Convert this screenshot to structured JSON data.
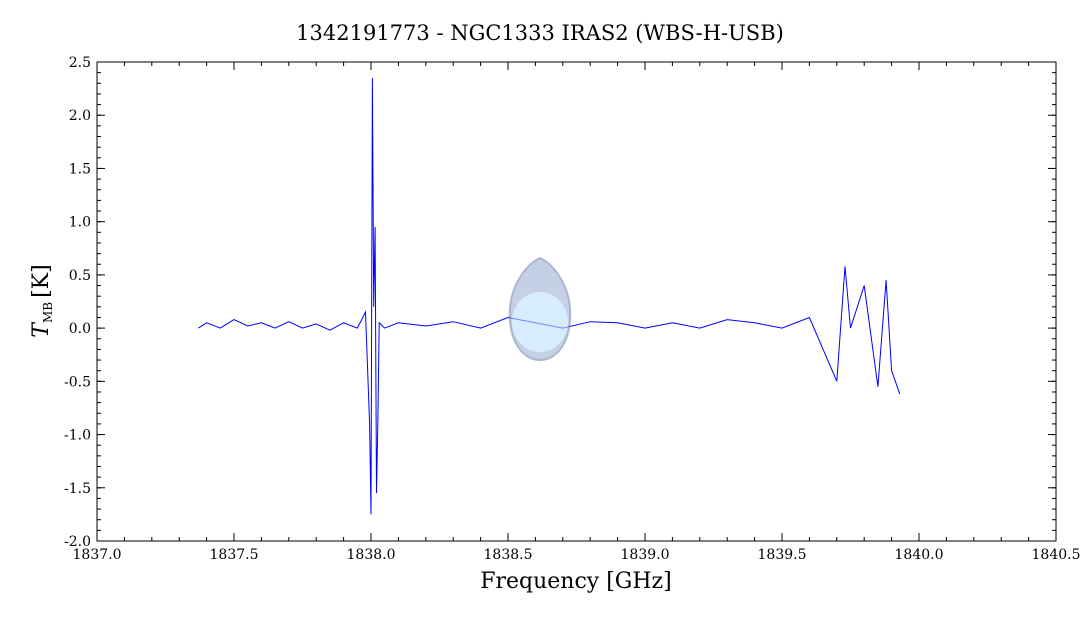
{
  "chart_data": {
    "type": "line",
    "title": "1342191773 - NGC1333 IRAS2 (WBS-H-USB)",
    "xlabel": "Frequency [GHz]",
    "ylabel": {
      "symbol": "T",
      "subscript": "MB",
      "unit": "[K]"
    },
    "xlim": [
      1837.0,
      1840.5
    ],
    "ylim": [
      -2.0,
      2.5
    ],
    "x_ticks": [
      1837.0,
      1837.5,
      1838.0,
      1838.5,
      1839.0,
      1839.5,
      1840.0,
      1840.5
    ],
    "x_tick_labels": [
      "1837.0",
      "1837.5",
      "1838.0",
      "1838.5",
      "1839.0",
      "1839.5",
      "1840.0",
      "1840.5"
    ],
    "y_ticks": [
      -2.0,
      -1.5,
      -1.0,
      -0.5,
      0.0,
      0.5,
      1.0,
      1.5,
      2.0,
      2.5
    ],
    "y_tick_labels": [
      "-2.0",
      "-1.5",
      "-1.0",
      "-0.5",
      "0.0",
      "0.5",
      "1.0",
      "1.5",
      "2.0",
      "2.5"
    ],
    "grid": false,
    "series": [
      {
        "color": "#0000ff",
        "x": [
          1837.37,
          1837.4,
          1837.45,
          1837.5,
          1837.55,
          1837.6,
          1837.65,
          1837.7,
          1837.75,
          1837.8,
          1837.85,
          1837.9,
          1837.95,
          1837.98,
          1837.995,
          1838.0,
          1838.005,
          1838.01,
          1838.015,
          1838.02,
          1838.025,
          1838.03,
          1838.05,
          1838.1,
          1838.2,
          1838.3,
          1838.4,
          1838.5,
          1838.6,
          1838.7,
          1838.8,
          1838.9,
          1839.0,
          1839.1,
          1839.2,
          1839.3,
          1839.4,
          1839.5,
          1839.6,
          1839.7,
          1839.73,
          1839.75,
          1839.8,
          1839.85,
          1839.88,
          1839.9,
          1839.93
        ],
        "y": [
          0.0,
          0.05,
          0.0,
          0.08,
          0.02,
          0.05,
          0.0,
          0.06,
          0.0,
          0.04,
          -0.02,
          0.05,
          0.0,
          0.15,
          -0.9,
          -1.75,
          2.35,
          0.2,
          0.95,
          -1.55,
          -0.85,
          0.05,
          0.0,
          0.05,
          0.02,
          0.06,
          0.0,
          0.1,
          0.05,
          0.0,
          0.06,
          0.05,
          0.0,
          0.05,
          0.0,
          0.08,
          0.05,
          0.0,
          0.1,
          -0.5,
          0.58,
          0.0,
          0.4,
          -0.55,
          0.45,
          -0.4,
          -0.62
        ]
      }
    ]
  }
}
